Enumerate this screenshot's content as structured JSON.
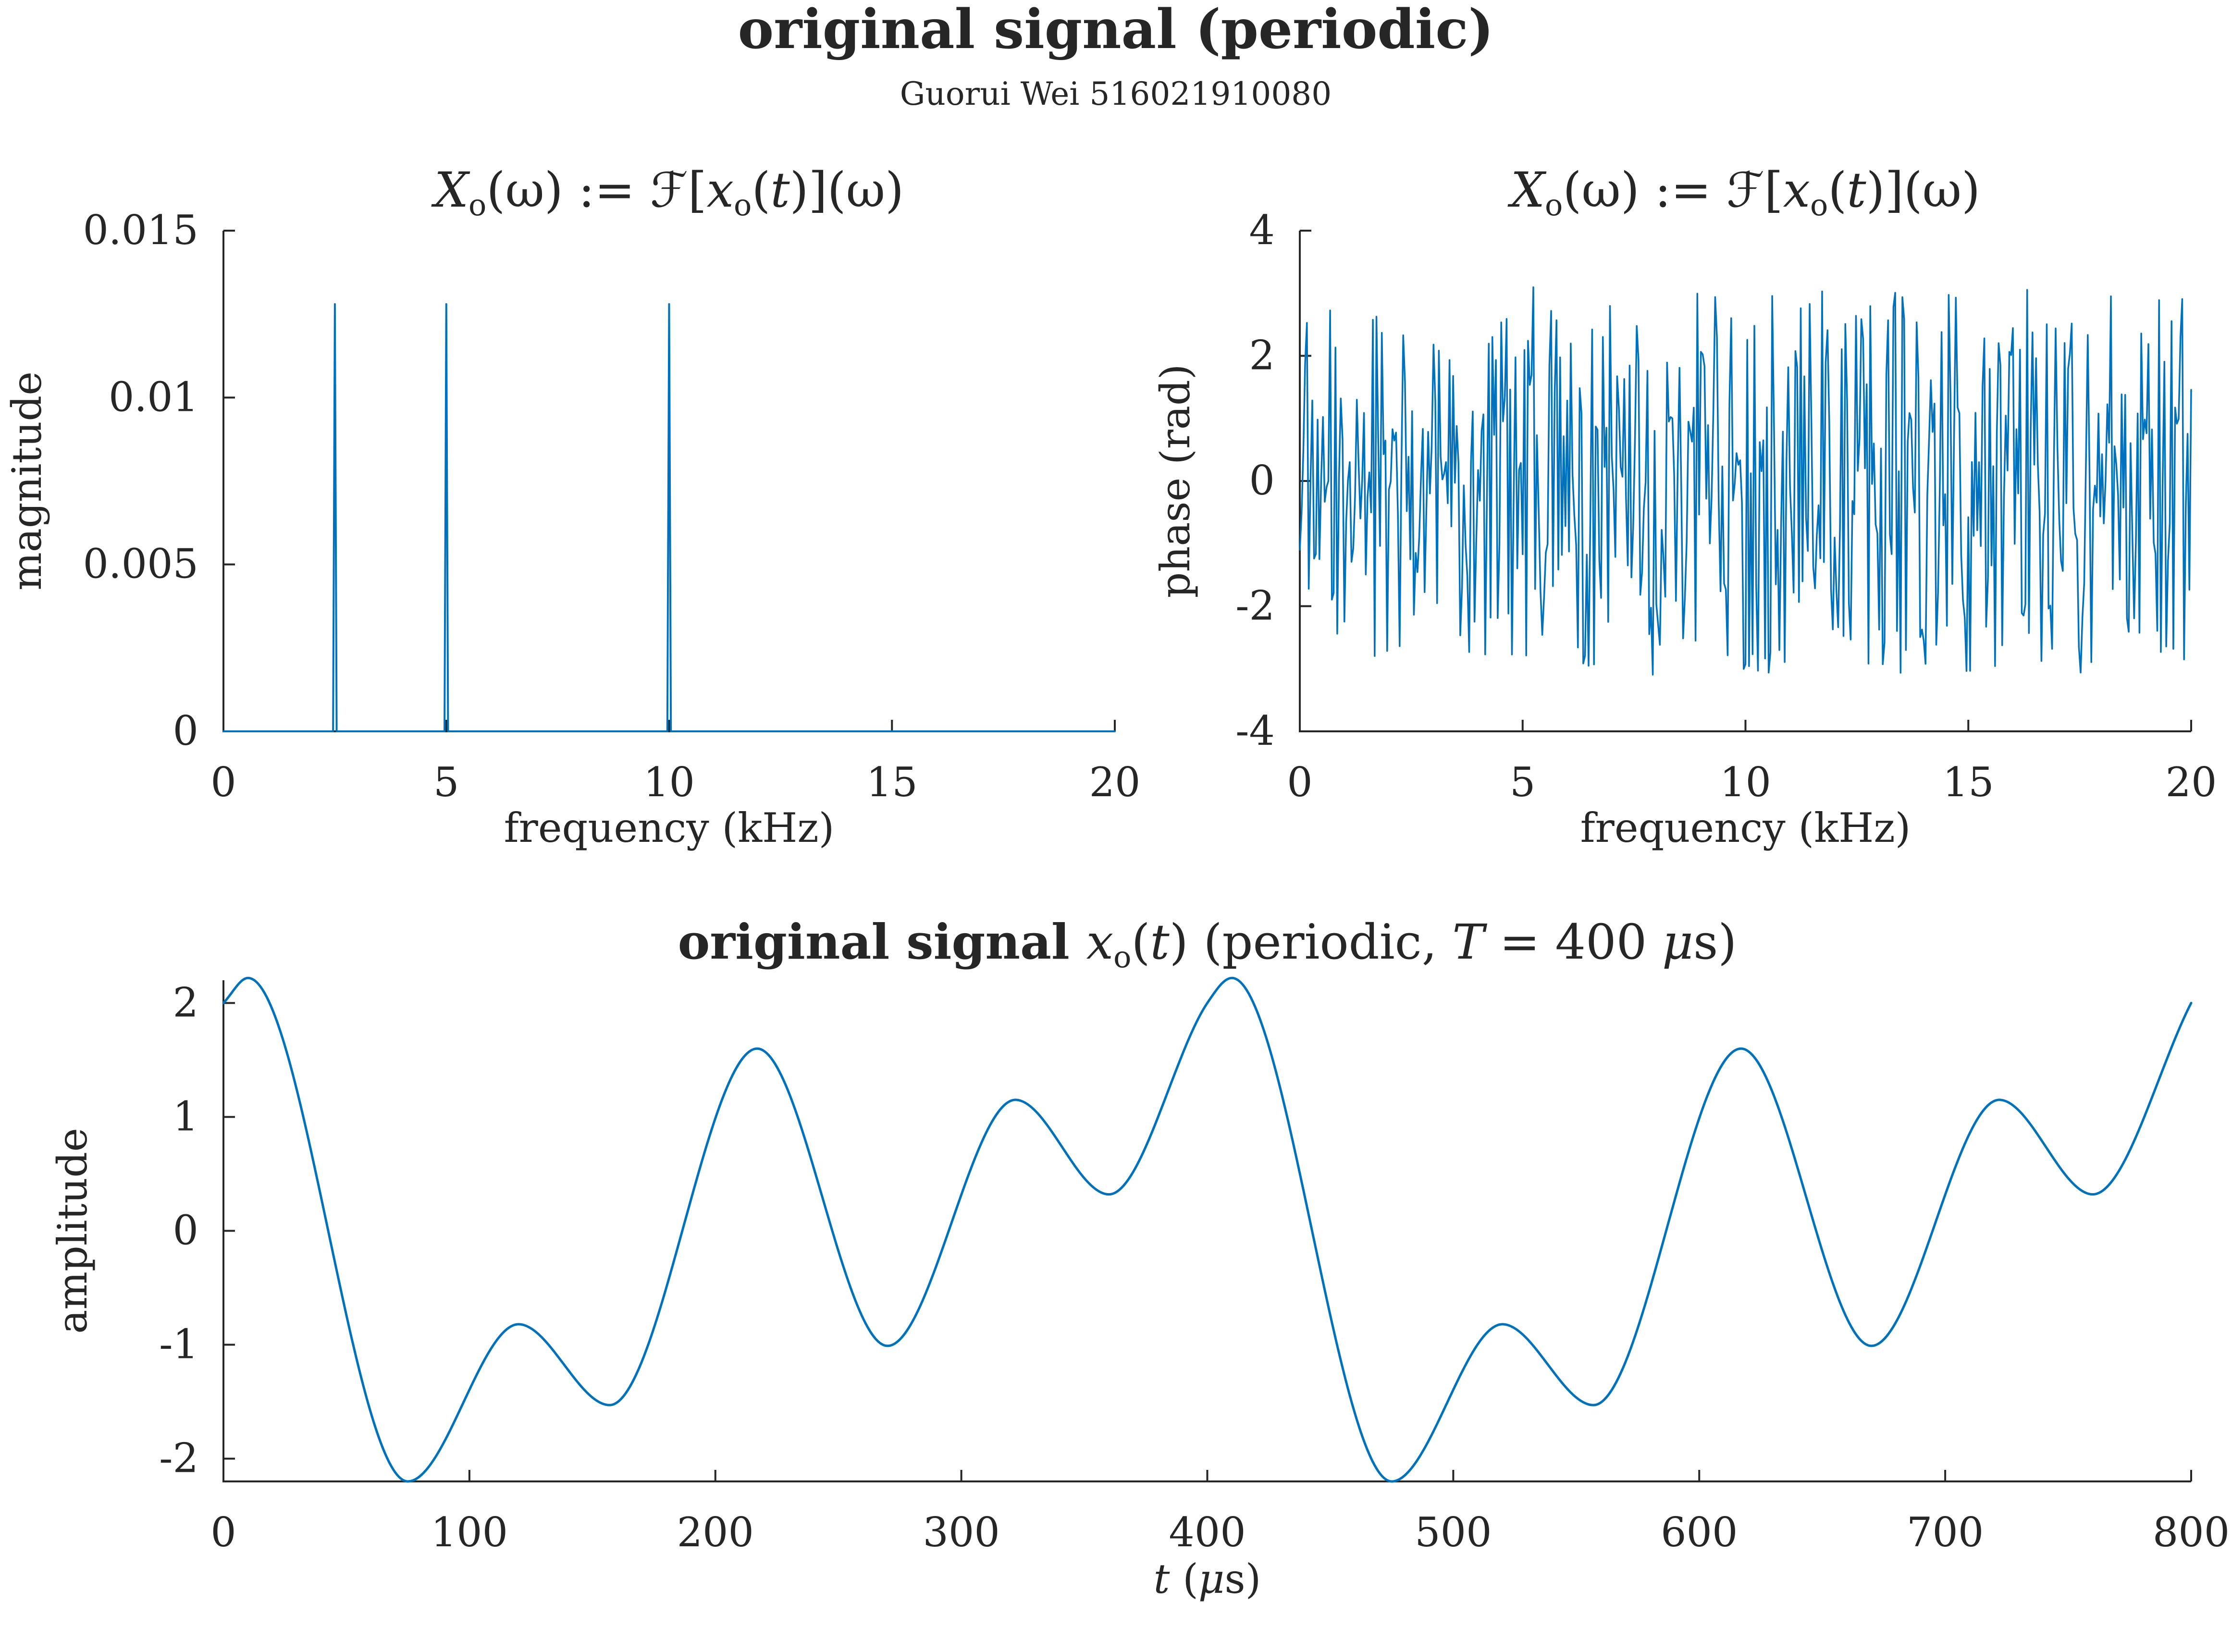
{
  "figure": {
    "title": "original signal (periodic)",
    "subtitle": "Guorui Wei 516021910080"
  },
  "colors": {
    "series": "#0072BD",
    "axis": "#262626"
  },
  "chart_data": [
    {
      "id": "magnitude",
      "type": "line",
      "title": "X_o(ω) := ℱ[x_o(t)](ω)",
      "title_parts": [
        {
          "t": "X",
          "it": true
        },
        {
          "t": "o",
          "sub": true
        },
        {
          "t": "(ω) := ℱ["
        },
        {
          "t": "x",
          "it": true
        },
        {
          "t": "o",
          "sub": true
        },
        {
          "t": "("
        },
        {
          "t": "t",
          "it": true
        },
        {
          "t": ")](ω)"
        }
      ],
      "xlabel": "frequency (kHz)",
      "ylabel": "magnitude",
      "xlim": [
        0,
        20
      ],
      "ylim": [
        0,
        0.015
      ],
      "xticks": [
        0,
        5,
        10,
        15,
        20
      ],
      "xticklabels": [
        "0",
        "5",
        "10",
        "15",
        "20"
      ],
      "yticks": [
        0,
        0.005,
        0.01,
        0.015
      ],
      "yticklabels": [
        "0",
        "0.005",
        "0.01",
        "0.015"
      ],
      "grid": false,
      "series": [
        {
          "peaks": [
            {
              "x": 2.5,
              "y": 0.0128
            },
            {
              "x": 5.0,
              "y": 0.0128
            },
            {
              "x": 10.0,
              "y": 0.0128
            }
          ],
          "baseline": 0
        }
      ]
    },
    {
      "id": "phase",
      "type": "line",
      "title": "X_o(ω) := ℱ[x_o(t)](ω)",
      "title_parts": [
        {
          "t": "X",
          "it": true
        },
        {
          "t": "o",
          "sub": true
        },
        {
          "t": "(ω) := ℱ["
        },
        {
          "t": "x",
          "it": true
        },
        {
          "t": "o",
          "sub": true
        },
        {
          "t": "("
        },
        {
          "t": "t",
          "it": true
        },
        {
          "t": ")](ω)"
        }
      ],
      "xlabel": "frequency (kHz)",
      "ylabel": "phase (rad)",
      "xlim": [
        0,
        20
      ],
      "ylim": [
        -4,
        4
      ],
      "xticks": [
        0,
        5,
        10,
        15,
        20
      ],
      "xticklabels": [
        "0",
        "5",
        "10",
        "15",
        "20"
      ],
      "yticks": [
        -4,
        -2,
        0,
        2,
        4
      ],
      "yticklabels": [
        "-4",
        "-2",
        "0",
        "2",
        "4"
      ],
      "grid": false,
      "series": [
        {
          "x_step": 0.04,
          "segments": [
            {
              "from": 0,
              "to": 5,
              "amplitude": 2.8,
              "clustered_near": 0
            },
            {
              "from": 5,
              "to": 20,
              "amplitude": 3.1,
              "uniform": true
            }
          ]
        }
      ]
    },
    {
      "id": "time",
      "type": "line",
      "title": "original signal x_o(t) (periodic, T = 400 μs)",
      "title_parts": [
        {
          "t": "original signal ",
          "b": true
        },
        {
          "t": "x",
          "it": true
        },
        {
          "t": "o",
          "sub": true
        },
        {
          "t": "("
        },
        {
          "t": "t",
          "it": true
        },
        {
          "t": ") (periodic, "
        },
        {
          "t": "T",
          "it": true
        },
        {
          "t": " = 400 "
        },
        {
          "t": "μ",
          "it": true
        },
        {
          "t": "s)"
        }
      ],
      "xlabel": "t (μs)",
      "xlabel_parts": [
        {
          "t": "t",
          "it": true
        },
        {
          "t": " ("
        },
        {
          "t": "μ",
          "it": true
        },
        {
          "t": "s)"
        }
      ],
      "ylabel": "amplitude",
      "xlim": [
        0,
        800
      ],
      "ylim": [
        -2.2,
        2.2
      ],
      "xticks": [
        0,
        100,
        200,
        300,
        400,
        500,
        600,
        700,
        800
      ],
      "xticklabels": [
        "0",
        "100",
        "200",
        "300",
        "400",
        "500",
        "600",
        "700",
        "800"
      ],
      "yticks": [
        -2,
        -1,
        0,
        1,
        2
      ],
      "yticklabels": [
        "-2",
        "-1",
        "0",
        "1",
        "2"
      ],
      "grid": false,
      "series": [
        {
          "period_us": 400,
          "points": [
            {
              "x": 0,
              "y": 2.0
            },
            {
              "x": 10,
              "y": 2.22
            },
            {
              "x": 75,
              "y": -2.2
            },
            {
              "x": 120,
              "y": -0.82
            },
            {
              "x": 157,
              "y": -1.53
            },
            {
              "x": 217,
              "y": 1.6
            },
            {
              "x": 270,
              "y": -1.01
            },
            {
              "x": 322,
              "y": 1.15
            },
            {
              "x": 360,
              "y": 0.32
            },
            {
              "x": 400,
              "y": 2.0
            },
            {
              "x": 410,
              "y": 2.22
            },
            {
              "x": 475,
              "y": -2.2
            },
            {
              "x": 520,
              "y": -0.82
            },
            {
              "x": 557,
              "y": -1.53
            },
            {
              "x": 617,
              "y": 1.6
            },
            {
              "x": 670,
              "y": -1.01
            },
            {
              "x": 722,
              "y": 1.15
            },
            {
              "x": 760,
              "y": 0.32
            },
            {
              "x": 800,
              "y": 2.0
            }
          ]
        }
      ]
    }
  ]
}
